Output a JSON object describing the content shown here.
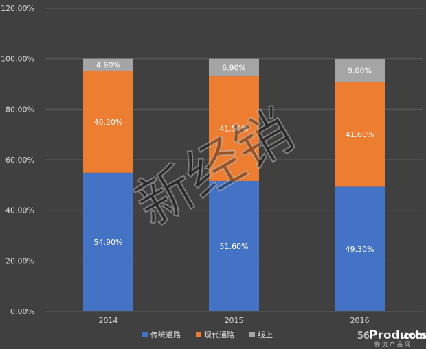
{
  "chart_data": {
    "type": "bar",
    "stacked": true,
    "categories": [
      "2014",
      "2015",
      "2016"
    ],
    "series": [
      {
        "name": "传统道路",
        "color": "#4472C4",
        "values": [
          54.9,
          51.6,
          49.3
        ],
        "labels": [
          "54.90%",
          "51.60%",
          "49.30%"
        ]
      },
      {
        "name": "现代通路",
        "color": "#ED7D31",
        "values": [
          40.2,
          41.5,
          41.6
        ],
        "labels": [
          "40.20%",
          "41.50%",
          "41.60%"
        ]
      },
      {
        "name": "线上",
        "color": "#A5A5A5",
        "values": [
          4.9,
          6.9,
          9.0
        ],
        "labels": [
          "4.90%",
          "6.90%",
          "9.00%"
        ]
      }
    ],
    "ylim": [
      0,
      120
    ],
    "yticks": [
      "0.00%",
      "20.00%",
      "40.00%",
      "60.00%",
      "80.00%",
      "100.00%",
      "120.00%"
    ],
    "grid": true,
    "legend_position": "bottom",
    "title": "",
    "xlabel": "",
    "ylabel": ""
  },
  "watermark": "新经销",
  "logo": {
    "prefix": "56",
    "name": "Products",
    "suffix": ".com",
    "tagline": "物流产品网"
  }
}
